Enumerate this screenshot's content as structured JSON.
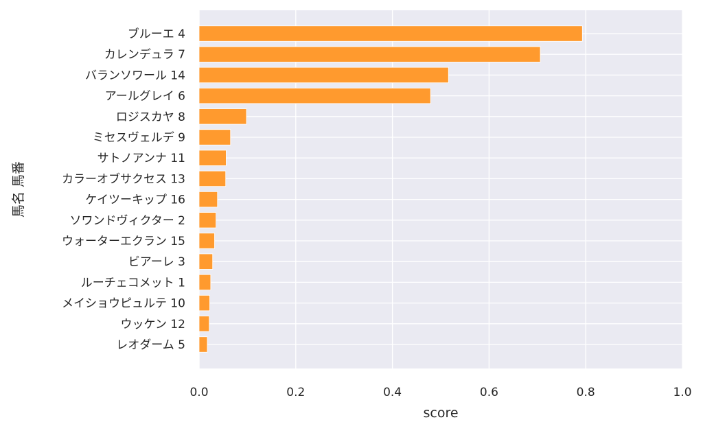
{
  "chart_data": {
    "type": "bar",
    "orientation": "horizontal",
    "title": "",
    "xlabel": "score",
    "ylabel": "馬名 馬番",
    "xlim": [
      0.0,
      1.0
    ],
    "xticks": [
      "0.0",
      "0.2",
      "0.4",
      "0.6",
      "0.8",
      "1.0"
    ],
    "grid": true,
    "bar_color": "#ff9a2e",
    "background_color": "#eaeaf2",
    "categories": [
      "ブルーエ 4",
      "カレンデュラ 7",
      "バランソワール 14",
      "アールグレイ 6",
      "ロジスカヤ 8",
      "ミセスヴェルデ 9",
      "サトノアンナ 11",
      "カラーオブサクセス 13",
      "ケイツーキップ 16",
      "ソワンドヴィクター 2",
      "ウォーターエクラン 15",
      "ビアーレ 3",
      "ルーチェコメット 1",
      "メイショウピュルテ 10",
      "ウッケン 12",
      "レオダーム 5"
    ],
    "values": [
      0.793,
      0.706,
      0.516,
      0.479,
      0.098,
      0.065,
      0.056,
      0.055,
      0.038,
      0.035,
      0.032,
      0.028,
      0.024,
      0.022,
      0.021,
      0.017
    ]
  }
}
